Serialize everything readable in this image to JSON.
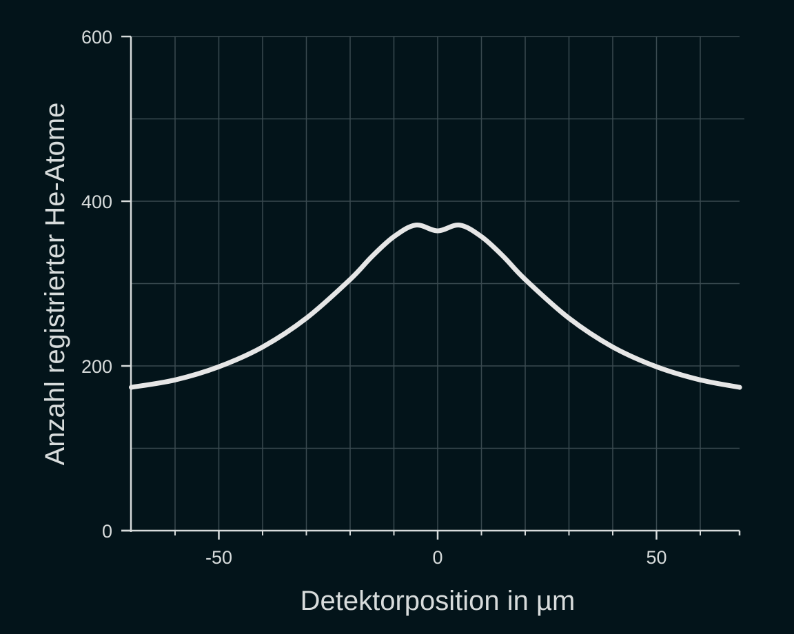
{
  "chart_data": {
    "type": "line",
    "title": "",
    "xlabel": "Detektorposition in µm",
    "ylabel": "Anzahl registrierter He-Atome",
    "xlim": [
      -70,
      69
    ],
    "ylim": [
      0,
      600
    ],
    "x_ticks": [
      -50,
      0,
      50
    ],
    "x_tick_labels": [
      "-50",
      "0",
      "50"
    ],
    "x_minor_ticks": [
      -60,
      -40,
      -30,
      -20,
      -10,
      10,
      20,
      30,
      40,
      60
    ],
    "y_ticks": [
      0,
      200,
      400,
      600
    ],
    "y_tick_labels": [
      "0",
      "200",
      "400",
      "600"
    ],
    "y_minor_ticks": [
      100,
      300,
      500
    ],
    "grid": true,
    "legend": null,
    "series": [
      {
        "name": "He-Atome",
        "color": "#e6e6e6",
        "x": [
          -70,
          -60,
          -50,
          -40,
          -30,
          -20,
          -15,
          -10,
          -5,
          0,
          5,
          10,
          15,
          20,
          30,
          40,
          50,
          60,
          69
        ],
        "values": [
          174,
          183,
          199,
          223,
          258,
          305,
          333,
          357,
          371,
          364,
          371,
          357,
          333,
          305,
          258,
          223,
          199,
          183,
          174
        ]
      }
    ]
  },
  "colors": {
    "background": "#03141a",
    "grid": "#3a4a50",
    "axis": "#d8dcdc",
    "line": "#e6e6e6"
  }
}
